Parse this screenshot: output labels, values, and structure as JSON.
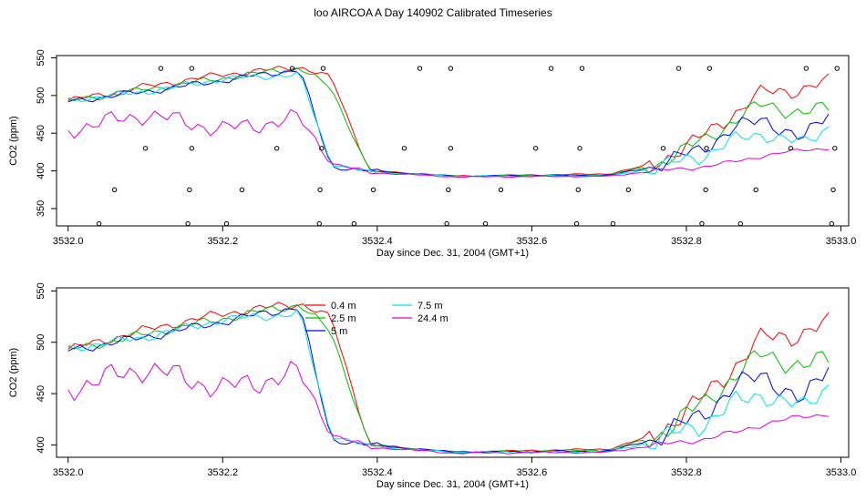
{
  "figure": {
    "title": "loo AIRCOA A  Day 140902  Calibrated Timeseries"
  },
  "colors": {
    "series": {
      "0.4 m": "#ff0000",
      "2.5 m": "#00c000",
      "5 m": "#0000ff",
      "7.5 m": "#00e5e5",
      "24.4 m": "#e000e0"
    },
    "axis": "#000000",
    "points": "#000000"
  },
  "chart_data": [
    {
      "type": "line",
      "title": "",
      "xlabel": "Day since Dec. 31, 2004 (GMT+1)",
      "ylabel": "CO2 (ppm)",
      "xlim": [
        3531.985,
        3533.01
      ],
      "ylim": [
        327,
        553
      ],
      "xticks": [
        "3532.0",
        "3532.2",
        "3532.4",
        "3532.6",
        "3532.8",
        "3533.0"
      ],
      "yticks": [
        "350",
        "400",
        "450",
        "500",
        "550"
      ],
      "grid": false,
      "legend": null,
      "x_knots": [
        3532.0,
        3532.1,
        3532.2,
        3532.3,
        3532.34,
        3532.39,
        3532.5,
        3532.7,
        3532.76,
        3532.82,
        3532.86,
        3532.9,
        3532.95,
        3532.985
      ],
      "series": [
        {
          "name": "0.4 m",
          "values": [
            493,
            512,
            528,
            538,
            525,
            400,
            393,
            396,
            410,
            445,
            475,
            505,
            508,
            518
          ]
        },
        {
          "name": "2.5 m",
          "values": [
            492,
            508,
            523,
            537,
            510,
            400,
            393,
            395,
            408,
            440,
            465,
            490,
            475,
            485
          ]
        },
        {
          "name": "5 m",
          "values": [
            492,
            505,
            520,
            535,
            405,
            400,
            393,
            394,
            406,
            430,
            455,
            470,
            440,
            480
          ]
        },
        {
          "name": "7.5 m",
          "values": [
            494,
            505,
            522,
            528,
            410,
            398,
            393,
            393,
            404,
            420,
            440,
            450,
            435,
            460
          ]
        },
        {
          "name": "24.4 m",
          "values": [
            455,
            475,
            455,
            470,
            410,
            398,
            392,
            393,
            400,
            405,
            412,
            420,
            428,
            430
          ]
        }
      ],
      "calibration_points": {
        "x": [
          3532.04,
          3532.06,
          3532.1,
          3532.12,
          3532.155,
          3532.157,
          3532.16,
          3532.16,
          3532.205,
          3532.225,
          3532.27,
          3532.29,
          3532.325,
          3532.326,
          3532.328,
          3532.33,
          3532.37,
          3532.395,
          3532.435,
          3532.455,
          3532.49,
          3532.492,
          3532.495,
          3532.495,
          3532.54,
          3532.56,
          3532.605,
          3532.625,
          3532.658,
          3532.66,
          3532.662,
          3532.665,
          3532.705,
          3532.725,
          3532.77,
          3532.79,
          3532.82,
          3532.825,
          3532.826,
          3532.83,
          3532.87,
          3532.89,
          3532.935,
          3532.955,
          3532.988,
          3532.99,
          3532.992,
          3532.995
        ],
        "y": [
          330,
          375,
          430,
          536,
          330,
          375,
          430,
          536,
          330,
          375,
          430,
          536,
          330,
          375,
          430,
          536,
          330,
          375,
          430,
          536,
          330,
          375,
          430,
          536,
          330,
          375,
          430,
          536,
          330,
          375,
          430,
          536,
          330,
          375,
          430,
          536,
          330,
          375,
          430,
          536,
          330,
          375,
          430,
          536,
          330,
          375,
          430,
          536
        ]
      }
    },
    {
      "type": "line",
      "title": "",
      "xlabel": "Day since Dec. 31, 2004 (GMT+1)",
      "ylabel": "CO2 (ppm)",
      "xlim": [
        3531.985,
        3533.01
      ],
      "ylim": [
        388,
        553
      ],
      "xticks": [
        "3532.0",
        "3532.2",
        "3532.4",
        "3532.6",
        "3532.8",
        "3533.0"
      ],
      "yticks": [
        "400",
        "450",
        "500",
        "550"
      ],
      "grid": false,
      "legend": {
        "placement": "top-center",
        "entries": [
          "0.4 m",
          "2.5 m",
          "5 m",
          "7.5 m",
          "24.4 m"
        ]
      },
      "x_knots": [
        3532.0,
        3532.1,
        3532.2,
        3532.3,
        3532.34,
        3532.39,
        3532.5,
        3532.7,
        3532.76,
        3532.82,
        3532.86,
        3532.9,
        3532.95,
        3532.985
      ],
      "series": [
        {
          "name": "0.4 m",
          "values": [
            493,
            512,
            528,
            538,
            525,
            400,
            393,
            396,
            410,
            445,
            475,
            505,
            508,
            518
          ]
        },
        {
          "name": "2.5 m",
          "values": [
            492,
            508,
            523,
            537,
            510,
            400,
            393,
            395,
            408,
            440,
            465,
            490,
            475,
            485
          ]
        },
        {
          "name": "5 m",
          "values": [
            492,
            505,
            520,
            535,
            405,
            400,
            393,
            394,
            406,
            430,
            455,
            470,
            440,
            480
          ]
        },
        {
          "name": "7.5 m",
          "values": [
            494,
            505,
            522,
            528,
            410,
            398,
            393,
            393,
            404,
            420,
            440,
            450,
            435,
            460
          ]
        },
        {
          "name": "24.4 m",
          "values": [
            455,
            475,
            455,
            470,
            410,
            398,
            392,
            393,
            400,
            405,
            412,
            420,
            428,
            430
          ]
        }
      ]
    }
  ]
}
